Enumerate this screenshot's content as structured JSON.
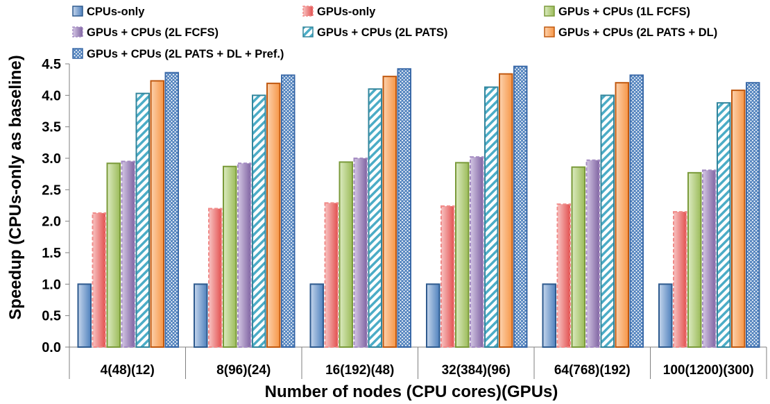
{
  "chart_data": {
    "type": "bar",
    "title": "",
    "xlabel": "Number of nodes (CPU cores)(GPUs)",
    "ylabel": "Speedup (CPUs-only as baseline)",
    "ylim": [
      0,
      4.5
    ],
    "ytick_step": 0.5,
    "yticks": [
      "0.0",
      "0.5",
      "1.0",
      "1.5",
      "2.0",
      "2.5",
      "3.0",
      "3.5",
      "4.0",
      "4.5"
    ],
    "grid": false,
    "legend_position": "top",
    "categories": [
      "4(48)(12)",
      "8(96)(24)",
      "16(192)(48)",
      "32(384)(96)",
      "64(768)(192)",
      "100(1200)(300)"
    ],
    "series": [
      {
        "name": "CPUs-only",
        "color": "#4F81BD",
        "light": "#C5D6EC",
        "stroke": "#2E5A8E",
        "pattern": "gradient",
        "values": [
          1.0,
          1.0,
          1.0,
          1.0,
          1.0,
          1.0
        ]
      },
      {
        "name": "GPUs-only",
        "color": "#E2504F",
        "light": "#F8C4C3",
        "stroke": "#F08A88",
        "pattern": "gradient-dashed",
        "values": [
          2.13,
          2.2,
          2.29,
          2.24,
          2.27,
          2.15
        ]
      },
      {
        "name": "GPUs + CPUs (1L FCFS)",
        "color": "#9BBB59",
        "light": "#DCEBC1",
        "stroke": "#7A9A3A",
        "pattern": "gradient",
        "values": [
          2.92,
          2.87,
          2.94,
          2.93,
          2.86,
          2.77
        ]
      },
      {
        "name": "GPUs + CPUs (2L FCFS)",
        "color": "#8064A2",
        "light": "#D4C7E4",
        "stroke": "#A48BC2",
        "pattern": "gradient-dashed",
        "values": [
          2.95,
          2.92,
          3.0,
          3.02,
          2.97,
          2.81
        ]
      },
      {
        "name": "GPUs + CPUs (2L PATS)",
        "color": "#4BACC6",
        "light": "#FFFFFF",
        "stroke": "#31859C",
        "pattern": "hatch",
        "values": [
          4.03,
          4.0,
          4.1,
          4.13,
          4.0,
          3.88
        ]
      },
      {
        "name": "GPUs + CPUs (2L PATS + DL)",
        "color": "#F79646",
        "light": "#FCD2AE",
        "stroke": "#C0580F",
        "pattern": "gradient",
        "values": [
          4.23,
          4.19,
          4.3,
          4.34,
          4.2,
          4.08
        ]
      },
      {
        "name": "GPUs + CPUs (2L PATS + DL + Pref.)",
        "color": "#4F81BD",
        "light": "#FFFFFF",
        "stroke": "#3B6AA8",
        "pattern": "crosshatch",
        "values": [
          4.36,
          4.32,
          4.42,
          4.46,
          4.32,
          4.2
        ]
      }
    ]
  }
}
